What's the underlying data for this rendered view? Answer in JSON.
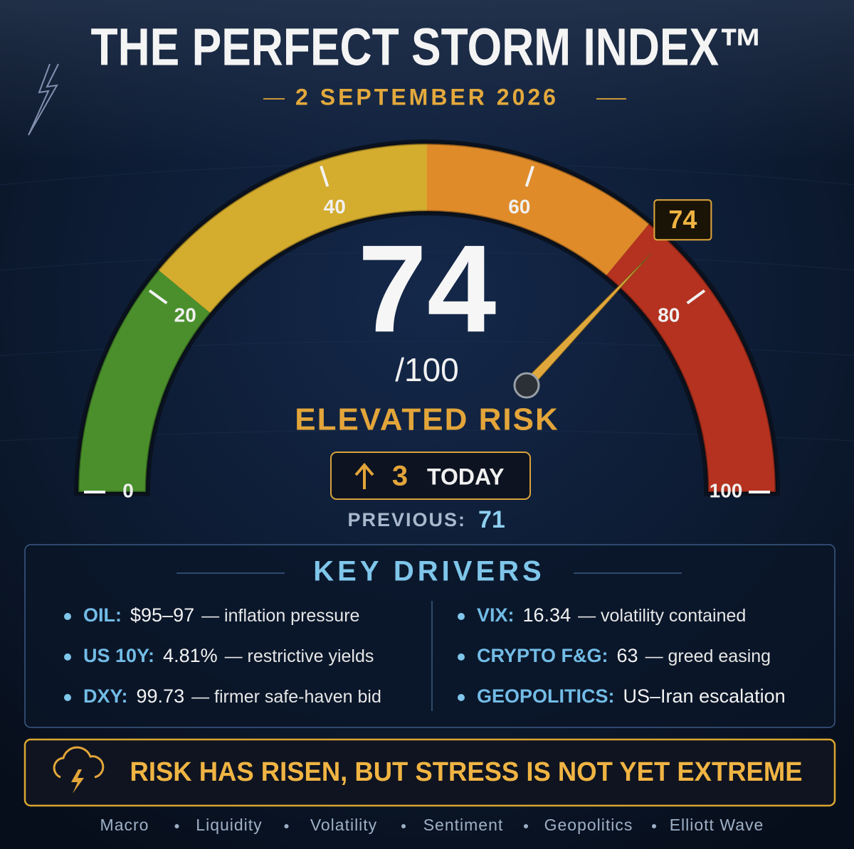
{
  "header": {
    "title": "THE PERFECT STORM INDEX™",
    "date": "2 SEPTEMBER 2026"
  },
  "chart_data": {
    "type": "gauge",
    "value": 74,
    "lim": [
      0,
      100
    ],
    "ticks": [
      0,
      20,
      40,
      60,
      80,
      100
    ],
    "scale_label": "/100",
    "status": "ELEVATED RISK",
    "bands": [
      {
        "from": 0,
        "to": 22,
        "color": "#4a8f2c"
      },
      {
        "from": 22,
        "to": 50,
        "color": "#d4ac2e"
      },
      {
        "from": 50,
        "to": 72,
        "color": "#df8b2a"
      },
      {
        "from": 72,
        "to": 100,
        "color": "#b4321f"
      }
    ],
    "change": {
      "value": 3,
      "label": "TODAY"
    },
    "previous": {
      "label": "PREVIOUS:",
      "value": 71
    }
  },
  "drivers": {
    "title": "KEY DRIVERS",
    "items": [
      {
        "name": "OIL:",
        "value": "$95–97",
        "note": "— inflation pressure"
      },
      {
        "name": "US 10Y:",
        "value": "4.81%",
        "note": "— restrictive yields"
      },
      {
        "name": "DXY:",
        "value": "99.73",
        "note": "— firmer safe-haven bid"
      },
      {
        "name": "VIX:",
        "value": "16.34",
        "note": "— volatility contained"
      },
      {
        "name": "CRYPTO F&G:",
        "value": "63",
        "note": "— greed easing"
      },
      {
        "name": "GEOPOLITICS:",
        "value": "US–Iran escalation"
      }
    ]
  },
  "banner": {
    "text": "RISK HAS RISEN, BUT STRESS IS NOT YET EXTREME"
  },
  "footer": {
    "items": [
      "Macro",
      "Liquidity",
      "Volatility",
      "Sentiment",
      "Geopolitics",
      "Elliott Wave"
    ]
  }
}
